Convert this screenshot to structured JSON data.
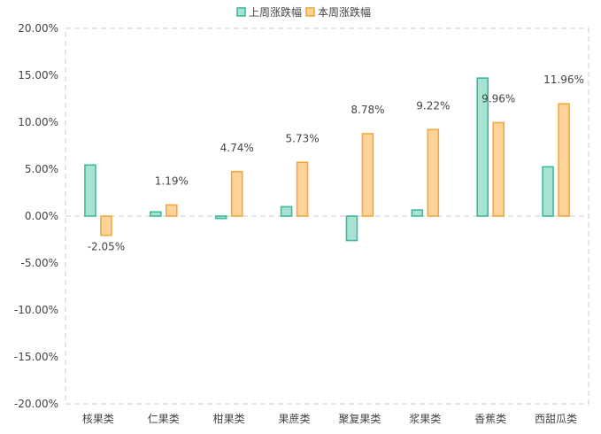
{
  "chart_data": {
    "type": "bar",
    "categories": [
      "核果类",
      "仁果类",
      "柑果类",
      "果蔗类",
      "聚复果类",
      "浆果类",
      "香蕉类",
      "西甜瓜类"
    ],
    "series": [
      {
        "name": "上周涨跌幅",
        "values": [
          5.45,
          0.45,
          -0.25,
          1.0,
          -2.6,
          0.65,
          14.7,
          5.25
        ],
        "fill": "#a8e2d2",
        "stroke": "#3dbb9d"
      },
      {
        "name": "本周涨跌幅",
        "values": [
          -2.05,
          1.19,
          4.74,
          5.73,
          8.78,
          9.22,
          9.96,
          11.96
        ],
        "fill": "#fdd39a",
        "stroke": "#f2a93b",
        "data_labels": [
          "-2.05%",
          "1.19%",
          "4.74%",
          "5.73%",
          "8.78%",
          "9.22%",
          "9.96%",
          "11.96%"
        ]
      }
    ],
    "yticks": [
      "20.00%",
      "15.00%",
      "10.00%",
      "5.00%",
      "0.00%",
      "-5.00%",
      "-10.00%",
      "-15.00%",
      "-20.00%"
    ],
    "ylim": [
      -20,
      20
    ],
    "ytick_step": 5,
    "legend_position": "top",
    "grid": false
  }
}
